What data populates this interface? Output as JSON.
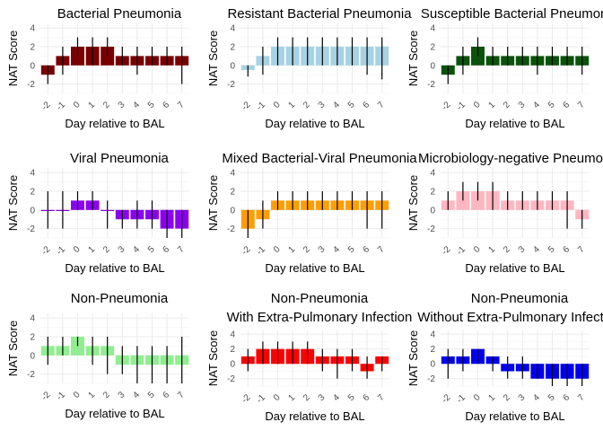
{
  "chart_data": [
    {
      "type": "bar",
      "title": "Bacterial Pneumonia",
      "xlabel": "Day relative to BAL",
      "ylabel": "NAT Score",
      "ylim": [
        -3,
        4.5
      ],
      "yticks": [
        -2,
        0,
        2,
        4
      ],
      "grid": true,
      "color": "#7a0000",
      "categories": [
        "-2",
        "-1",
        "0",
        "1",
        "2",
        "3",
        "4",
        "5",
        "6",
        "7"
      ],
      "values": [
        -1,
        1,
        2,
        2,
        2,
        1,
        1,
        1,
        1,
        1
      ],
      "err_low": [
        -2,
        -1,
        1,
        0,
        1,
        0,
        -1,
        0,
        0,
        -2
      ],
      "err_high": [
        0,
        2,
        3,
        3,
        3,
        2,
        2,
        2,
        2,
        2
      ]
    },
    {
      "type": "bar",
      "title": "Resistant Bacterial Pneumonia",
      "xlabel": "Day relative to BAL",
      "ylabel": "NAT Score",
      "ylim": [
        -3,
        4.5
      ],
      "yticks": [
        -2,
        0,
        2,
        4
      ],
      "grid": true,
      "color": "#a6d2e4",
      "categories": [
        "-2",
        "-1",
        "0",
        "1",
        "2",
        "3",
        "4",
        "5",
        "6",
        "7"
      ],
      "values": [
        -0.5,
        1,
        2,
        2,
        2,
        2,
        2,
        2,
        2,
        2
      ],
      "err_low": [
        -1.2,
        -1,
        0,
        0,
        0,
        0,
        0,
        0,
        -1,
        -1.5
      ],
      "err_high": [
        0,
        2,
        3,
        3,
        3,
        3,
        3,
        3,
        3,
        3
      ]
    },
    {
      "type": "bar",
      "title": "Susceptible Bacterial Pneumonia",
      "xlabel": "Day relative to BAL",
      "ylabel": "NAT Score",
      "ylim": [
        -3,
        4.5
      ],
      "yticks": [
        -2,
        0,
        2,
        4
      ],
      "grid": true,
      "color": "#0b520b",
      "categories": [
        "-2",
        "-1",
        "0",
        "1",
        "2",
        "3",
        "4",
        "5",
        "6",
        "7"
      ],
      "values": [
        -1,
        1,
        2,
        1,
        1,
        1,
        1,
        1,
        1,
        1
      ],
      "err_low": [
        -2,
        -1,
        1,
        0,
        0,
        0,
        -1,
        0,
        0,
        -1
      ],
      "err_high": [
        0,
        2,
        3,
        2,
        2,
        2,
        2,
        2,
        2,
        2
      ]
    },
    {
      "type": "bar",
      "title": "Viral Pneumonia",
      "xlabel": "Day relative to BAL",
      "ylabel": "NAT Score",
      "ylim": [
        -3,
        4.5
      ],
      "yticks": [
        -2,
        0,
        2,
        4
      ],
      "grid": true,
      "color": "#8c00f0",
      "categories": [
        "-2",
        "-1",
        "0",
        "1",
        "2",
        "3",
        "4",
        "5",
        "6",
        "7"
      ],
      "values": [
        0,
        0,
        1,
        1,
        0,
        -1,
        -1,
        -1,
        -2,
        -2
      ],
      "err_low": [
        -2,
        -2,
        0,
        0,
        -2,
        -2,
        -2,
        -2,
        -3,
        -3
      ],
      "err_high": [
        2,
        2,
        2,
        2,
        1,
        0,
        1,
        1,
        0,
        0
      ]
    },
    {
      "type": "bar",
      "title": "Mixed Bacterial-Viral Pneumonia",
      "xlabel": "Day relative to BAL",
      "ylabel": "NAT Score",
      "ylim": [
        -3,
        4.5
      ],
      "yticks": [
        -2,
        0,
        2,
        4
      ],
      "grid": true,
      "color": "#ff9e00",
      "categories": [
        "-2",
        "-1",
        "0",
        "1",
        "2",
        "3",
        "4",
        "5",
        "6",
        "7"
      ],
      "values": [
        -2,
        -1,
        1,
        1,
        1,
        1,
        1,
        1,
        1,
        1
      ],
      "err_low": [
        -3,
        -2,
        0,
        0,
        0,
        0,
        0,
        0,
        -2,
        -2
      ],
      "err_high": [
        0,
        1,
        2,
        2,
        2,
        2,
        2,
        2,
        2,
        2
      ]
    },
    {
      "type": "bar",
      "title": "Microbiology-negative Pneumonia",
      "xlabel": "Day relative to BAL",
      "ylabel": "NAT Score",
      "ylim": [
        -3,
        4.5
      ],
      "yticks": [
        -2,
        0,
        2,
        4
      ],
      "grid": true,
      "color": "#ffb6c1",
      "categories": [
        "-2",
        "-1",
        "0",
        "1",
        "2",
        "3",
        "4",
        "5",
        "6",
        "7"
      ],
      "values": [
        1,
        2,
        2,
        2,
        1,
        1,
        1,
        1,
        1,
        -1
      ],
      "err_low": [
        0,
        1,
        1,
        0,
        0,
        0,
        0,
        0,
        -2,
        -2
      ],
      "err_high": [
        2,
        3,
        3,
        3,
        2,
        2,
        2,
        2,
        2,
        0
      ]
    },
    {
      "type": "bar",
      "title": "Non-Pneumonia",
      "xlabel": "Day relative to BAL",
      "ylabel": "NAT Score",
      "ylim": [
        -3,
        4.5
      ],
      "yticks": [
        -2,
        0,
        2,
        4
      ],
      "grid": true,
      "color": "#90ee90",
      "categories": [
        "-2",
        "-1",
        "0",
        "1",
        "2",
        "3",
        "4",
        "5",
        "6",
        "7"
      ],
      "values": [
        1,
        1,
        2,
        1,
        1,
        -1,
        -1,
        -1,
        -1,
        -1
      ],
      "err_low": [
        -1,
        0,
        1,
        -1,
        -2,
        -2,
        -3,
        -3,
        -3,
        -3
      ],
      "err_high": [
        2,
        2,
        2,
        2,
        2,
        1,
        1,
        1,
        1,
        2
      ]
    },
    {
      "type": "bar",
      "title": "Non-Pneumonia\nWith Extra-Pulmonary Infection",
      "xlabel": "Day relative to BAL",
      "ylabel": "NAT Score",
      "ylim": [
        -3,
        4.5
      ],
      "yticks": [
        -2,
        0,
        2,
        4
      ],
      "grid": true,
      "color": "#ff0000",
      "categories": [
        "-2",
        "-1",
        "0",
        "1",
        "2",
        "3",
        "4",
        "5",
        "6",
        "7"
      ],
      "values": [
        1,
        2,
        2,
        2,
        2,
        1,
        1,
        1,
        -1,
        1
      ],
      "err_low": [
        -1,
        0,
        0,
        0,
        0,
        -1,
        -2,
        -1,
        -2,
        -1
      ],
      "err_high": [
        2,
        3,
        3,
        3,
        3,
        2,
        2,
        2,
        1,
        1
      ]
    },
    {
      "type": "bar",
      "title": "Non-Pneumonia\nWithout Extra-Pulmonary Infection",
      "xlabel": "Day relative to BAL",
      "ylabel": "NAT Score",
      "ylim": [
        -3,
        4.5
      ],
      "yticks": [
        -2,
        0,
        2,
        4
      ],
      "grid": true,
      "color": "#0000ee",
      "categories": [
        "-2",
        "-1",
        "0",
        "1",
        "2",
        "3",
        "4",
        "5",
        "6",
        "7"
      ],
      "values": [
        1,
        1,
        2,
        1,
        -1,
        -1,
        -2,
        -2,
        -2,
        -2
      ],
      "err_low": [
        -2,
        -1,
        0,
        -1,
        -2,
        -2,
        -2,
        -3,
        -3,
        -3
      ],
      "err_high": [
        2,
        2,
        2,
        1,
        1,
        1,
        0,
        0,
        0,
        0
      ]
    }
  ]
}
